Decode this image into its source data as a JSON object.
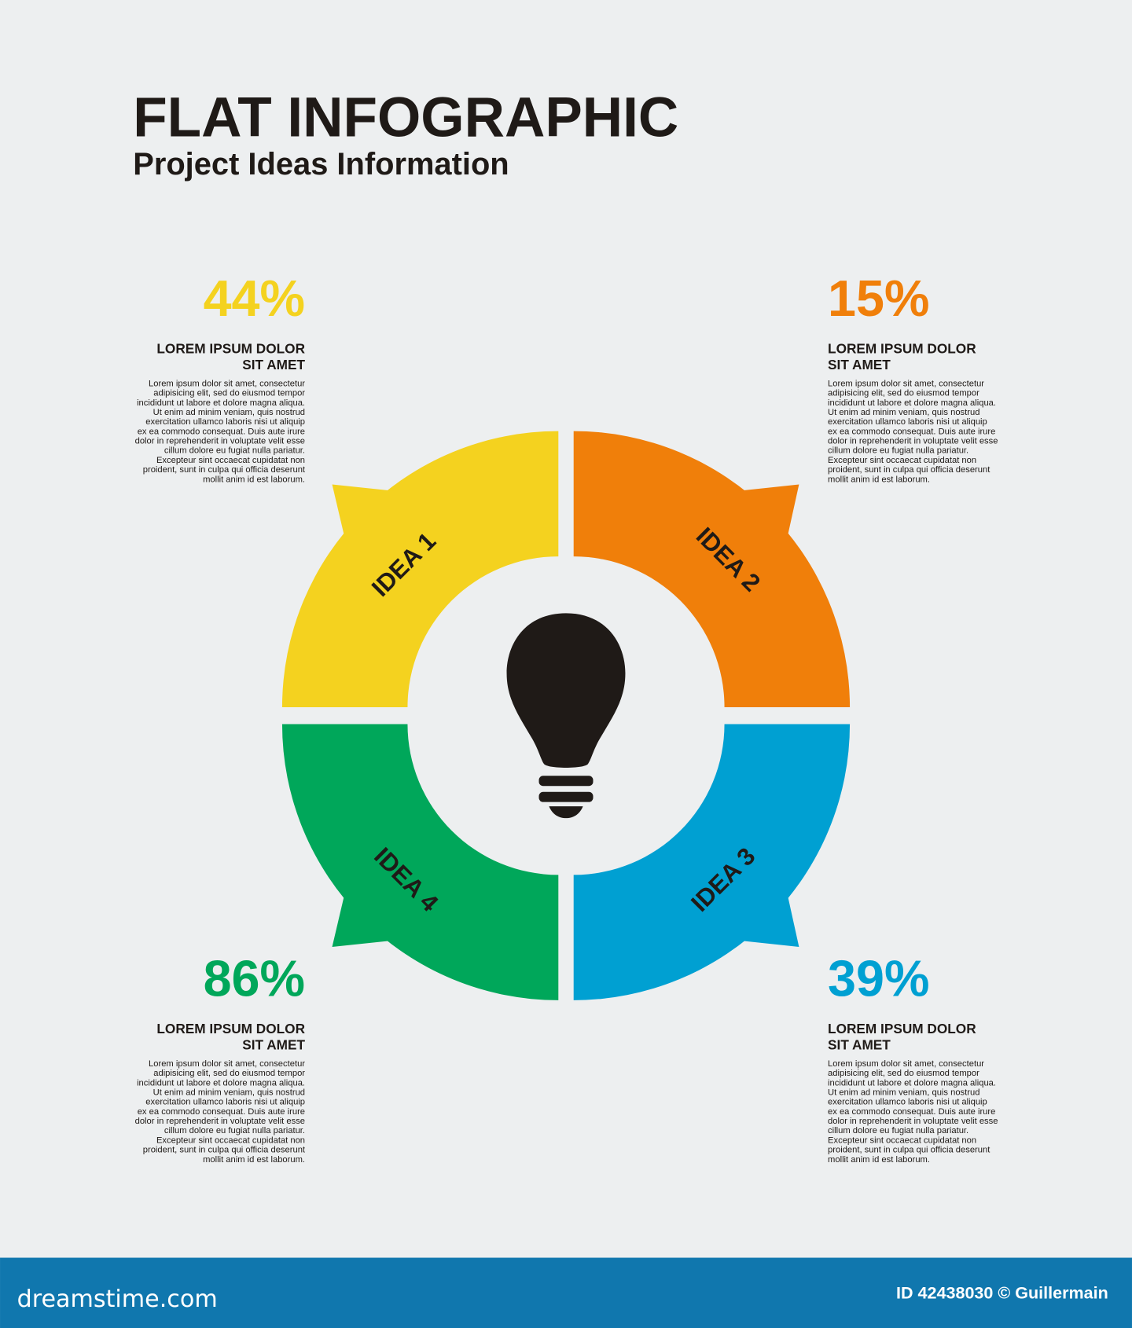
{
  "header": {
    "title": "FLAT INFOGRAPHIC",
    "subtitle": "Project Ideas Information"
  },
  "colors": {
    "background": "#edeff0",
    "idea1": "#f4d21f",
    "idea2": "#f07f0a",
    "idea3": "#00a0d2",
    "idea4": "#00a75a",
    "text": "#1f1a17",
    "footer": "#1077ae"
  },
  "center_icon": "lightbulb-icon",
  "segments": [
    {
      "label": "IDEA 1"
    },
    {
      "label": "IDEA 2"
    },
    {
      "label": "IDEA 3"
    },
    {
      "label": "IDEA 4"
    }
  ],
  "blocks": [
    {
      "percent": "44%",
      "heading": [
        "LOREM IPSUM DOLOR",
        "SIT AMET"
      ]
    },
    {
      "percent": "15%",
      "heading": [
        "LOREM IPSUM DOLOR",
        "SIT AMET"
      ]
    },
    {
      "percent": "86%",
      "heading": [
        "LOREM IPSUM DOLOR",
        "SIT AMET"
      ]
    },
    {
      "percent": "39%",
      "heading": [
        "LOREM IPSUM DOLOR",
        "SIT AMET"
      ]
    }
  ],
  "body_lines": [
    "Lorem ipsum dolor sit amet, consectetur",
    "adipisicing elit, sed do eiusmod tempor",
    "incididunt ut labore et dolore magna aliqua.",
    "Ut enim ad minim veniam, quis nostrud",
    "exercitation ullamco laboris nisi ut aliquip",
    "ex ea commodo consequat. Duis aute irure",
    "dolor in reprehenderit in voluptate velit esse",
    "cillum dolore eu fugiat nulla pariatur.",
    "Excepteur sint occaecat cupidatat non",
    "proident, sunt in culpa qui officia deserunt",
    "mollit anim id est laborum."
  ],
  "footer": {
    "logo": "dreamstime.com",
    "credit": "ID 42438030 © Guillermain"
  }
}
